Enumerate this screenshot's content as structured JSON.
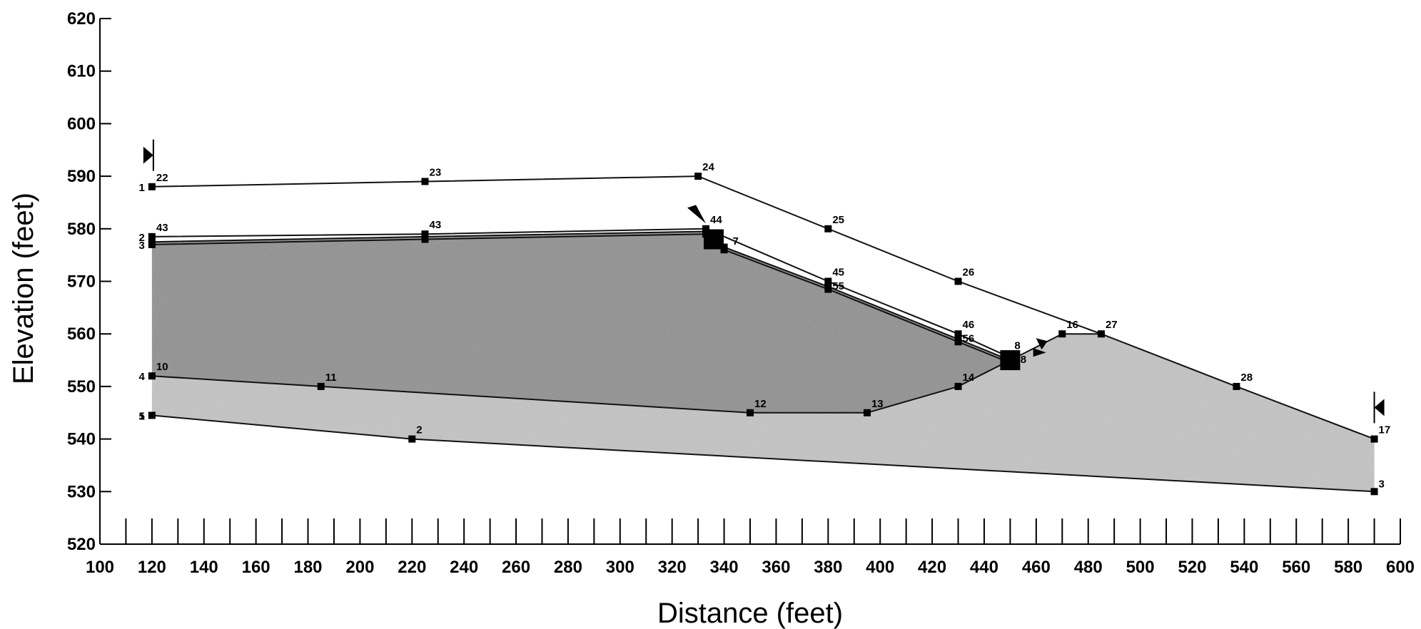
{
  "chart_data": {
    "type": "line",
    "xlabel": "Distance (feet)",
    "ylabel": "Elevation (feet)",
    "xlim": [
      100,
      600
    ],
    "ylim": [
      520,
      620
    ],
    "x_ticks": [
      100,
      120,
      140,
      160,
      180,
      200,
      220,
      240,
      260,
      280,
      300,
      320,
      340,
      360,
      380,
      400,
      420,
      440,
      460,
      480,
      500,
      520,
      540,
      560,
      580,
      600
    ],
    "y_ticks": [
      520,
      530,
      540,
      550,
      560,
      570,
      580,
      590,
      600,
      610,
      620
    ],
    "grid": false,
    "colors": {
      "fill_dark": "#8c8c8c",
      "fill_light": "#c4c4c4",
      "line": "#111111"
    },
    "regions": [
      {
        "name": "upper-layer",
        "shade": "dark",
        "boundary": [
          [
            120,
            577.5
          ],
          [
            225,
            578.5
          ],
          [
            333,
            579.5
          ],
          [
            340,
            576.5
          ],
          [
            380,
            569
          ],
          [
            430,
            559
          ],
          [
            450,
            555
          ],
          [
            430,
            550
          ],
          [
            395,
            545
          ],
          [
            350,
            545
          ],
          [
            185,
            550
          ],
          [
            120,
            552
          ]
        ]
      },
      {
        "name": "lower-layer",
        "shade": "light",
        "boundary": [
          [
            120,
            552
          ],
          [
            185,
            550
          ],
          [
            350,
            545
          ],
          [
            395,
            545
          ],
          [
            430,
            550
          ],
          [
            450,
            555
          ],
          [
            470,
            560
          ],
          [
            485,
            560
          ],
          [
            537,
            550
          ],
          [
            590,
            540
          ],
          [
            590,
            530
          ],
          [
            220,
            540
          ],
          [
            120,
            544.5
          ]
        ]
      }
    ],
    "series": [
      {
        "points": [
          [
            120,
            588
          ],
          [
            225,
            589
          ],
          [
            330,
            590
          ],
          [
            380,
            580
          ],
          [
            430,
            570
          ],
          [
            485,
            560
          ],
          [
            537,
            550
          ],
          [
            590,
            540
          ]
        ]
      },
      {
        "points": [
          [
            120,
            578.5
          ],
          [
            225,
            579
          ],
          [
            333,
            580
          ],
          [
            380,
            570
          ],
          [
            430,
            560
          ],
          [
            450,
            555.5
          ]
        ]
      },
      {
        "points": [
          [
            120,
            577.5
          ],
          [
            225,
            578.5
          ],
          [
            333,
            579.5
          ],
          [
            340,
            576.5
          ],
          [
            380,
            569
          ],
          [
            430,
            559
          ],
          [
            450,
            555
          ]
        ]
      },
      {
        "points": [
          [
            120,
            577
          ],
          [
            225,
            578
          ],
          [
            333,
            579
          ],
          [
            340,
            576
          ],
          [
            380,
            568.5
          ],
          [
            430,
            558.5
          ],
          [
            450,
            554.5
          ]
        ]
      },
      {
        "points": [
          [
            120,
            552
          ],
          [
            185,
            550
          ],
          [
            350,
            545
          ],
          [
            395,
            545
          ],
          [
            430,
            550
          ],
          [
            450,
            555
          ],
          [
            470,
            560
          ],
          [
            485,
            560
          ]
        ]
      },
      {
        "points": [
          [
            120,
            544.5
          ],
          [
            220,
            540
          ],
          [
            590,
            530
          ]
        ]
      }
    ],
    "point_labels": [
      {
        "text": "22",
        "x": 120,
        "y": 588
      },
      {
        "text": "1",
        "x": 120,
        "y": 588
      },
      {
        "text": "23",
        "x": 225,
        "y": 589
      },
      {
        "text": "24",
        "x": 330,
        "y": 590
      },
      {
        "text": "25",
        "x": 380,
        "y": 580
      },
      {
        "text": "26",
        "x": 430,
        "y": 570
      },
      {
        "text": "16",
        "x": 470,
        "y": 560
      },
      {
        "text": "27",
        "x": 485,
        "y": 560
      },
      {
        "text": "28",
        "x": 537,
        "y": 550
      },
      {
        "text": "17",
        "x": 590,
        "y": 540
      },
      {
        "text": "3",
        "x": 590,
        "y": 530
      },
      {
        "text": "43",
        "x": 120,
        "y": 578.5
      },
      {
        "text": "2",
        "x": 120,
        "y": 578.5
      },
      {
        "text": "3",
        "x": 120,
        "y": 577
      },
      {
        "text": "43",
        "x": 225,
        "y": 579
      },
      {
        "text": "44",
        "x": 333,
        "y": 580
      },
      {
        "text": "7",
        "x": 340,
        "y": 577
      },
      {
        "text": "45",
        "x": 380,
        "y": 570
      },
      {
        "text": "55",
        "x": 380,
        "y": 569
      },
      {
        "text": "46",
        "x": 430,
        "y": 560
      },
      {
        "text": "56",
        "x": 430,
        "y": 559
      },
      {
        "text": "8",
        "x": 450,
        "y": 556
      },
      {
        "text": "18",
        "x": 450,
        "y": 555
      },
      {
        "text": "10",
        "x": 120,
        "y": 552
      },
      {
        "text": "4",
        "x": 120,
        "y": 552
      },
      {
        "text": "11",
        "x": 185,
        "y": 550
      },
      {
        "text": "12",
        "x": 350,
        "y": 545
      },
      {
        "text": "13",
        "x": 395,
        "y": 545
      },
      {
        "text": "14",
        "x": 430,
        "y": 550
      },
      {
        "text": "1",
        "x": 120,
        "y": 544.5
      },
      {
        "text": "5",
        "x": 120,
        "y": 544.5
      },
      {
        "text": "2",
        "x": 220,
        "y": 540
      }
    ],
    "bottom_hatch_ticks": [
      110,
      120,
      130,
      140,
      150,
      160,
      170,
      180,
      190,
      200,
      210,
      220,
      230,
      240,
      250,
      260,
      270,
      280,
      290,
      300,
      310,
      320,
      330,
      340,
      350,
      360,
      370,
      380,
      390,
      400,
      410,
      420,
      430,
      440,
      450,
      460,
      470,
      480,
      490,
      500,
      510,
      520,
      530,
      540,
      550,
      560,
      570,
      580,
      590,
      600
    ]
  }
}
